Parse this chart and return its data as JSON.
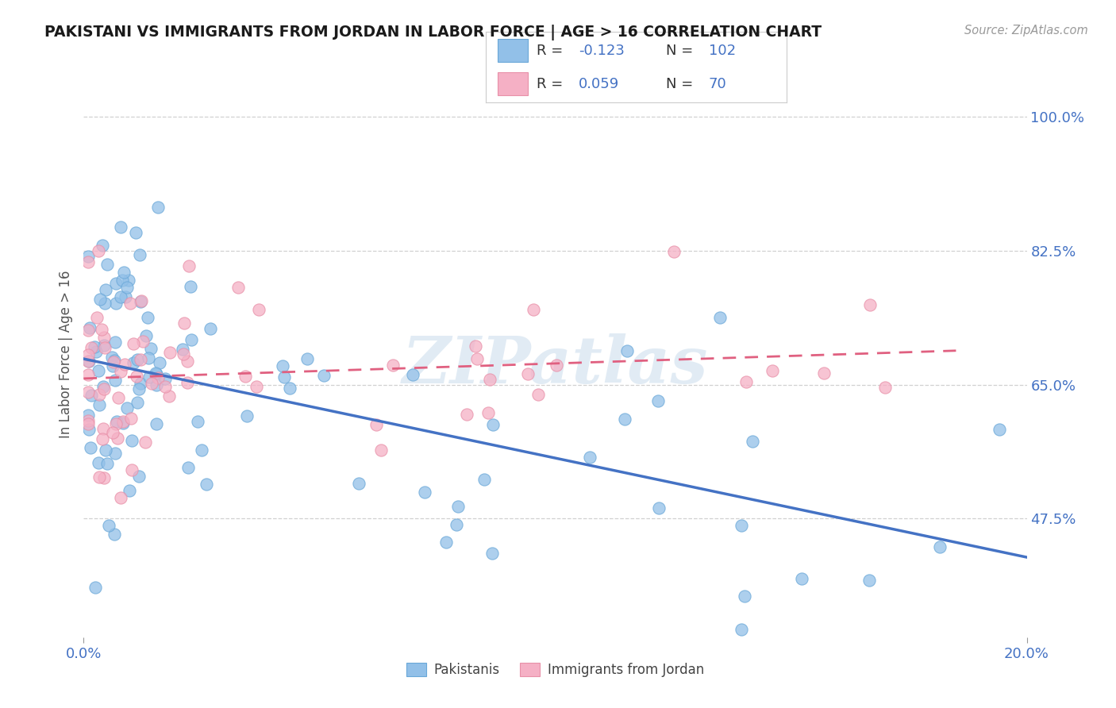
{
  "title": "PAKISTANI VS IMMIGRANTS FROM JORDAN IN LABOR FORCE | AGE > 16 CORRELATION CHART",
  "source": "Source: ZipAtlas.com",
  "ylabel": "In Labor Force | Age > 16",
  "ytick_labels": [
    "47.5%",
    "65.0%",
    "82.5%",
    "100.0%"
  ],
  "ytick_values": [
    0.475,
    0.65,
    0.825,
    1.0
  ],
  "xlim": [
    0.0,
    0.2
  ],
  "ylim": [
    0.32,
    1.06
  ],
  "watermark": "ZIPatlas",
  "blue_color": "#92c0e8",
  "pink_color": "#f5b0c5",
  "blue_edge_color": "#6aa8d8",
  "pink_edge_color": "#e890a8",
  "blue_line_color": "#4472c4",
  "pink_line_color": "#e06080",
  "axis_color": "#4472c4",
  "grid_color": "#cccccc",
  "text_color": "#333333",
  "legend_label1": "Pakistanis",
  "legend_label2": "Immigrants from Jordan"
}
